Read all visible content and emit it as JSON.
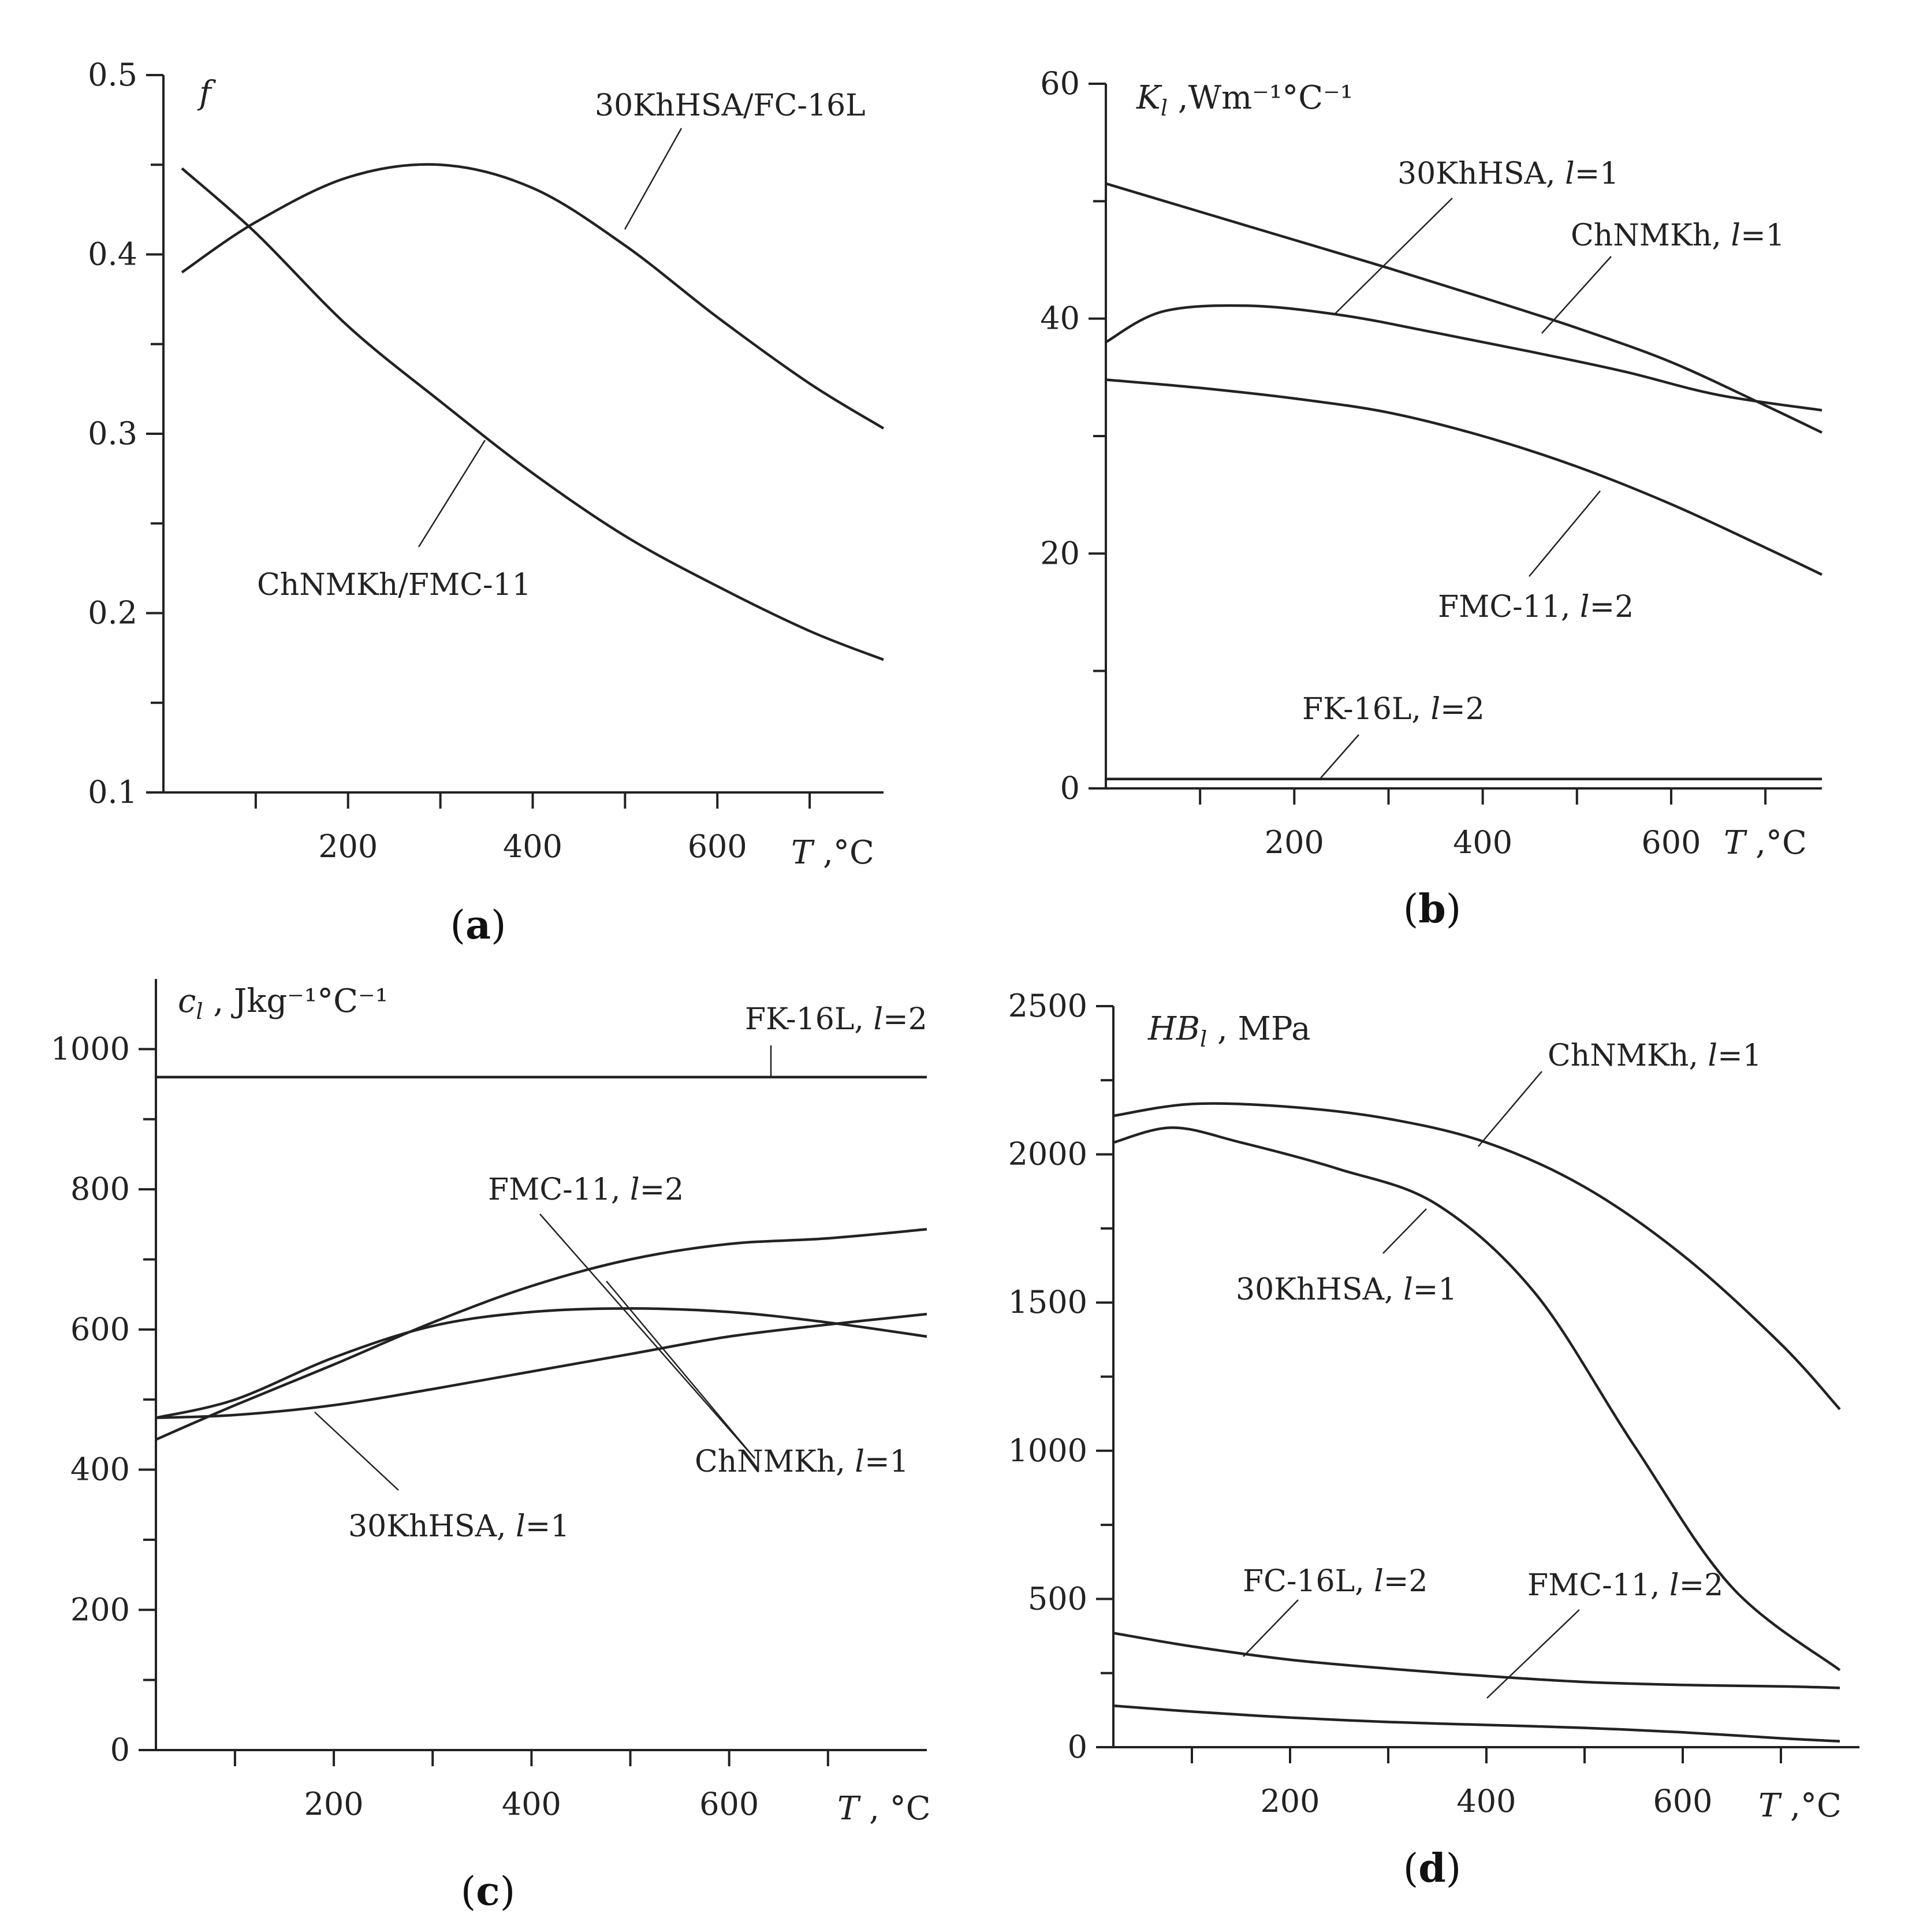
{
  "chart_data": [
    {
      "id": "a",
      "type": "line",
      "panel_label": "(a)",
      "ylabel": "f",
      "xlabel": "T ,°C",
      "xlim": [
        0,
        780
      ],
      "ylim": [
        0.1,
        0.5
      ],
      "x_major_ticks": [
        200,
        400,
        600
      ],
      "x_minor_ticks": [
        100,
        300,
        500,
        700
      ],
      "y_major_ticks": [
        0.1,
        0.2,
        0.3,
        0.4,
        0.5
      ],
      "y_minor_ticks": [
        0.15,
        0.25,
        0.35,
        0.45
      ],
      "series": [
        {
          "name": "30KhHSA/FC-16L",
          "x": [
            20,
            100,
            200,
            300,
            400,
            500,
            600,
            700,
            780
          ],
          "y": [
            0.39,
            0.418,
            0.443,
            0.45,
            0.437,
            0.405,
            0.365,
            0.328,
            0.303
          ]
        },
        {
          "name": "ChNMKh/FMC-11",
          "x": [
            20,
            100,
            200,
            300,
            400,
            500,
            600,
            700,
            780
          ],
          "y": [
            0.448,
            0.412,
            0.36,
            0.318,
            0.278,
            0.243,
            0.215,
            0.19,
            0.174
          ]
        }
      ],
      "annotations": [
        {
          "text": "30KhHSA/FC-16L",
          "point": [
            505,
            0.41
          ]
        },
        {
          "text": "ChNMKh/FMC-11",
          "point": [
            348,
            0.295
          ]
        }
      ]
    },
    {
      "id": "b",
      "type": "line",
      "panel_label": "(b)",
      "ylabel_main": "K",
      "ylabel_sub": "l",
      "ylabel_rest": " ,Wm⁻¹°C⁻¹",
      "xlabel": "T ,°C",
      "xlim": [
        0,
        760
      ],
      "ylim": [
        0,
        60
      ],
      "x_major_ticks": [
        200,
        400,
        600
      ],
      "x_minor_ticks": [
        100,
        300,
        500,
        700
      ],
      "y_major_ticks": [
        0,
        20,
        40,
        60
      ],
      "y_minor_ticks": [
        10,
        30,
        50
      ],
      "series": [
        {
          "name": "ChNMKh, l=1",
          "x": [
            0,
            100,
            200,
            300,
            400,
            500,
            600,
            700,
            760
          ],
          "y": [
            51.5,
            49.1,
            46.7,
            44.3,
            41.8,
            39.2,
            36.3,
            32.6,
            30.3
          ]
        },
        {
          "name": "30KhHSA, l=1",
          "x": [
            0,
            60,
            150,
            250,
            350,
            450,
            550,
            650,
            760
          ],
          "y": [
            38,
            40.6,
            41.1,
            40.3,
            38.8,
            37.2,
            35.5,
            33.5,
            32.2
          ]
        },
        {
          "name": "FMC-11, l=2",
          "x": [
            0,
            100,
            200,
            300,
            400,
            500,
            600,
            700,
            760
          ],
          "y": [
            34.8,
            34.1,
            33.2,
            32,
            30,
            27.4,
            24.2,
            20.5,
            18.2
          ]
        },
        {
          "name": "FK-16L, l=2",
          "x": [
            0,
            760
          ],
          "y": [
            0.8,
            0.8
          ]
        }
      ],
      "annotations": [
        {
          "text": "30KhHSA, l=1",
          "point": [
            240,
            40.6
          ]
        },
        {
          "text": "ChNMKh, l=1",
          "point": [
            470,
            39.2
          ]
        },
        {
          "text": "FMC-11, l=2",
          "point": [
            530,
            25.8
          ]
        },
        {
          "text": "FK-16L, l=2",
          "point": [
            230,
            0.8
          ]
        }
      ]
    },
    {
      "id": "c",
      "type": "line",
      "panel_label": "(c)",
      "ylabel_main": "c",
      "ylabel_sub": "l",
      "ylabel_rest": " , Jkg⁻¹°C⁻¹",
      "xlabel": "T , °C",
      "xlim": [
        20,
        800
      ],
      "ylim": [
        0,
        1100
      ],
      "x_major_ticks": [
        200,
        400,
        600
      ],
      "x_minor_ticks": [
        100,
        300,
        500,
        700
      ],
      "y_major_ticks": [
        0,
        200,
        400,
        600,
        800,
        1000
      ],
      "y_minor_ticks": [
        100,
        300,
        500,
        700,
        900
      ],
      "series": [
        {
          "name": "FK-16L, l=2",
          "x": [
            20,
            800
          ],
          "y": [
            960,
            960
          ]
        },
        {
          "name": "FMC-11, l=2",
          "x": [
            20,
            100,
            200,
            300,
            400,
            500,
            600,
            700,
            800
          ],
          "y": [
            443,
            492,
            550,
            610,
            662,
            700,
            722,
            730,
            743
          ]
        },
        {
          "name": "ChNMKh, l=1",
          "x": [
            20,
            100,
            200,
            300,
            400,
            500,
            600,
            700,
            800
          ],
          "y": [
            474,
            500,
            560,
            605,
            625,
            630,
            625,
            610,
            590
          ]
        },
        {
          "name": "30KhHSA, l=1",
          "x": [
            20,
            100,
            200,
            300,
            400,
            500,
            600,
            700,
            800
          ],
          "y": [
            474,
            478,
            492,
            515,
            540,
            565,
            590,
            607,
            622
          ]
        }
      ],
      "annotations": [
        {
          "text": "FK-16L, l=2",
          "point": [
            645,
            960
          ]
        },
        {
          "text": "FMC-11, l=2",
          "point": [
            470,
            700
          ]
        },
        {
          "text": "ChNMKh, l=1",
          "point": [
            400,
            640
          ]
        },
        {
          "text": "30KhHSA, l=1",
          "point": [
            180,
            480
          ]
        }
      ]
    },
    {
      "id": "d",
      "type": "line",
      "panel_label": "(d)",
      "ylabel_main": "HB",
      "ylabel_sub": "l",
      "ylabel_rest": " , MPa",
      "xlabel": "T ,°C",
      "xlim": [
        20,
        780
      ],
      "ylim": [
        0,
        2500
      ],
      "x_major_ticks": [
        200,
        400,
        600
      ],
      "x_minor_ticks": [
        100,
        300,
        500,
        700
      ],
      "y_major_ticks": [
        0,
        500,
        1000,
        1500,
        2000,
        2500
      ],
      "y_minor_ticks": [
        250,
        750,
        1250,
        1750,
        2250
      ],
      "series": [
        {
          "name": "ChNMKh, l=1",
          "x": [
            20,
            100,
            200,
            300,
            400,
            500,
            600,
            700,
            760
          ],
          "y": [
            2130,
            2170,
            2160,
            2120,
            2040,
            1890,
            1660,
            1360,
            1140
          ]
        },
        {
          "name": "30KhHSA, l=1",
          "x": [
            20,
            80,
            150,
            250,
            350,
            450,
            550,
            650,
            760
          ],
          "y": [
            2040,
            2090,
            2040,
            1950,
            1830,
            1530,
            1020,
            540,
            260
          ]
        },
        {
          "name": "FC-16L, l=2",
          "x": [
            20,
            100,
            200,
            300,
            400,
            500,
            600,
            700,
            760
          ],
          "y": [
            385,
            340,
            295,
            265,
            240,
            220,
            210,
            205,
            200
          ]
        },
        {
          "name": "FMC-11, l=2",
          "x": [
            20,
            100,
            200,
            300,
            400,
            500,
            600,
            700,
            760
          ],
          "y": [
            140,
            120,
            100,
            85,
            75,
            65,
            50,
            30,
            20
          ]
        }
      ],
      "annotations": [
        {
          "text": "ChNMKh, l=1",
          "point": [
            400,
            2040
          ]
        },
        {
          "text": "30KhHSA, l=1",
          "point": [
            340,
            1840
          ]
        },
        {
          "text": "FC-16L, l=2",
          "point": [
            150,
            320
          ]
        },
        {
          "text": "FMC-11, l=2",
          "point": [
            400,
            85
          ]
        }
      ]
    }
  ]
}
